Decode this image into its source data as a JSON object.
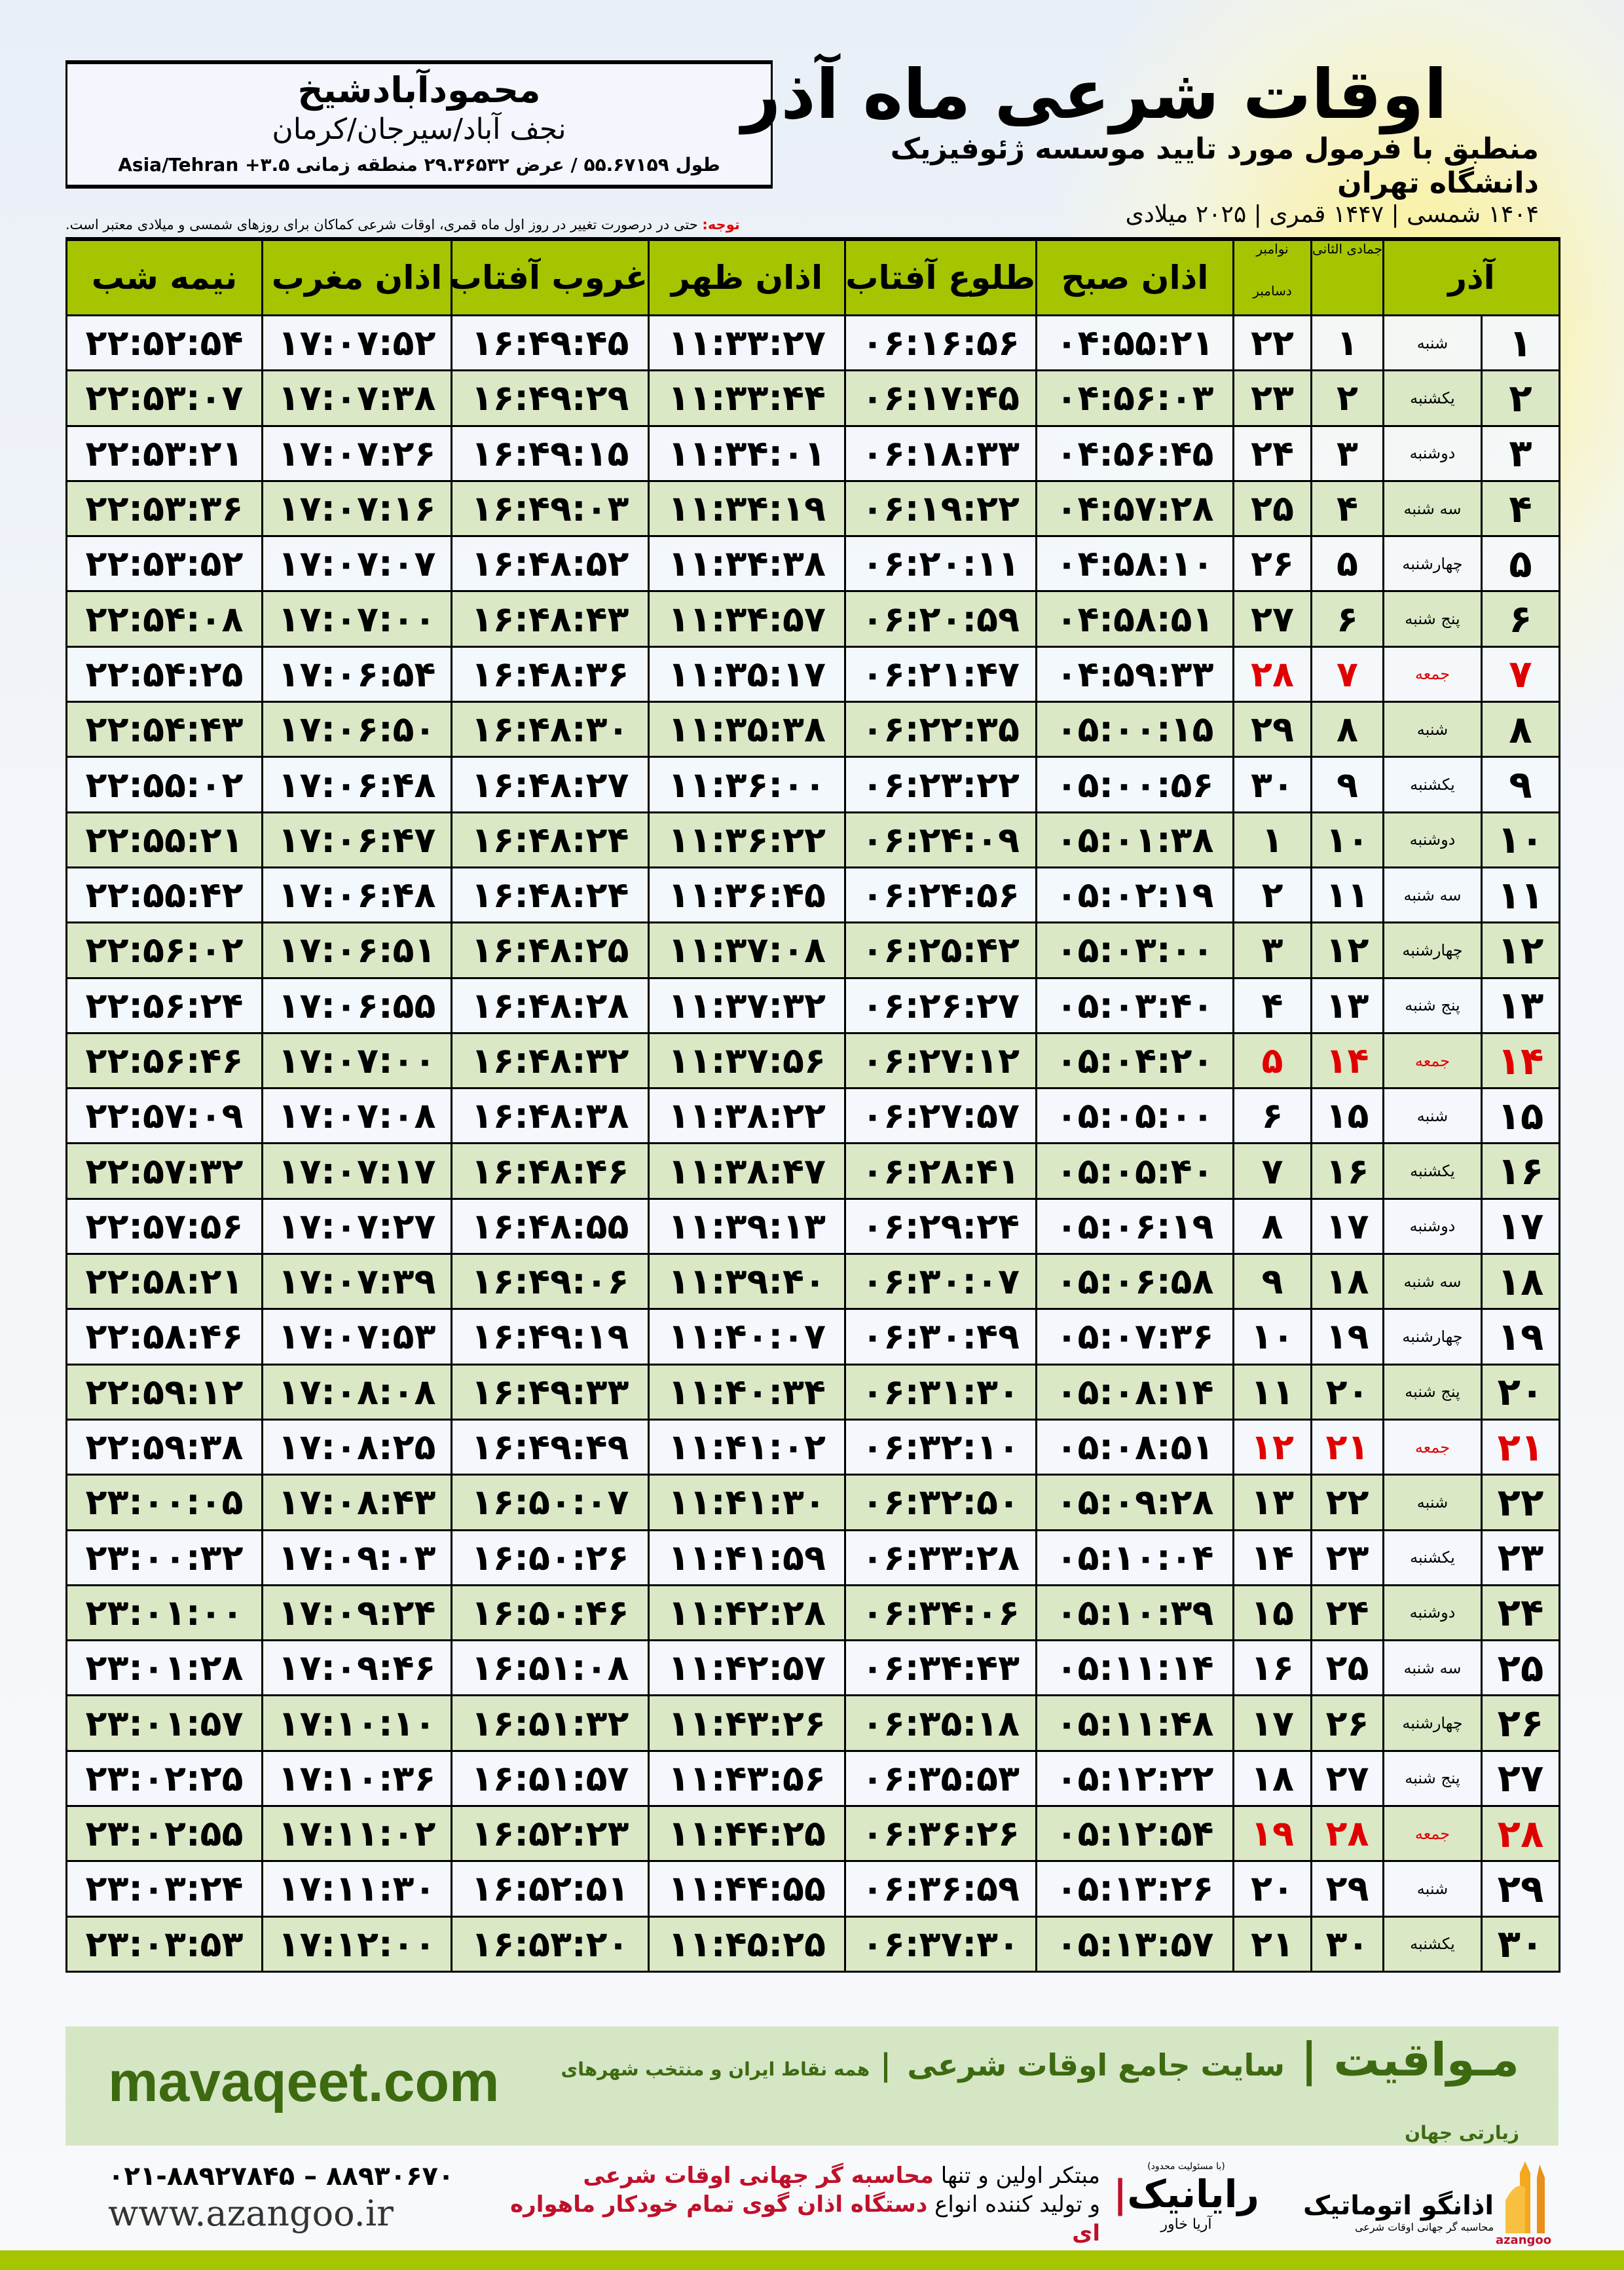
{
  "header": {
    "title": "اوقات شرعی ماه آذر",
    "subtitle": "منطبق با فرمول مورد تایید موسسه ژئوفیزیک دانشگاه تهران",
    "years": "۱۴۰۴ شمسی | ۱۴۴۷ قمری | ۲۰۲۵ میلادی"
  },
  "location": {
    "name": "محمودآبادشیخ",
    "region": "نجف آباد/سیرجان/کرمان",
    "coords": "طول ۵۵.۶۷۱۵۹ / عرض ۲۹.۳۶۵۳۲ منطقه زمانی ۳.۵+ Asia/Tehran"
  },
  "note": {
    "label": "توجه:",
    "text": " حتی در درصورت تغییر در روز اول ماه قمری، اوقات شرعی کماکان برای روزهای شمسی و میلادی معتبر است."
  },
  "table": {
    "headers": {
      "azar": "آذر",
      "jumada": "جمادی الثانی",
      "november": "نوامبر",
      "december": "دسامبر",
      "fajr": "اذان صبح",
      "sunrise": "طلوع آفتاب",
      "dhuhr": "اذان ظهر",
      "sunset": "غروب آفتاب",
      "maghrib": "اذان مغرب",
      "midnight": "نیمه شب"
    },
    "friday_color": "#e00000",
    "header_color": "#a6c500",
    "rows": [
      [
        "۱",
        "شنبه",
        "۱",
        "۲۲",
        "۰۴:۵۵:۲۱",
        "۰۶:۱۶:۵۶",
        "۱۱:۳۳:۲۷",
        "۱۶:۴۹:۴۵",
        "۱۷:۰۷:۵۲",
        "۲۲:۵۲:۵۴"
      ],
      [
        "۲",
        "یکشنبه",
        "۲",
        "۲۳",
        "۰۴:۵۶:۰۳",
        "۰۶:۱۷:۴۵",
        "۱۱:۳۳:۴۴",
        "۱۶:۴۹:۲۹",
        "۱۷:۰۷:۳۸",
        "۲۲:۵۳:۰۷"
      ],
      [
        "۳",
        "دوشنبه",
        "۳",
        "۲۴",
        "۰۴:۵۶:۴۵",
        "۰۶:۱۸:۳۳",
        "۱۱:۳۴:۰۱",
        "۱۶:۴۹:۱۵",
        "۱۷:۰۷:۲۶",
        "۲۲:۵۳:۲۱"
      ],
      [
        "۴",
        "سه شنبه",
        "۴",
        "۲۵",
        "۰۴:۵۷:۲۸",
        "۰۶:۱۹:۲۲",
        "۱۱:۳۴:۱۹",
        "۱۶:۴۹:۰۳",
        "۱۷:۰۷:۱۶",
        "۲۲:۵۳:۳۶"
      ],
      [
        "۵",
        "چهارشنبه",
        "۵",
        "۲۶",
        "۰۴:۵۸:۱۰",
        "۰۶:۲۰:۱۱",
        "۱۱:۳۴:۳۸",
        "۱۶:۴۸:۵۲",
        "۱۷:۰۷:۰۷",
        "۲۲:۵۳:۵۲"
      ],
      [
        "۶",
        "پنج شنبه",
        "۶",
        "۲۷",
        "۰۴:۵۸:۵۱",
        "۰۶:۲۰:۵۹",
        "۱۱:۳۴:۵۷",
        "۱۶:۴۸:۴۳",
        "۱۷:۰۷:۰۰",
        "۲۲:۵۴:۰۸"
      ],
      [
        "۷",
        "جمعه",
        "۷",
        "۲۸",
        "۰۴:۵۹:۳۳",
        "۰۶:۲۱:۴۷",
        "۱۱:۳۵:۱۷",
        "۱۶:۴۸:۳۶",
        "۱۷:۰۶:۵۴",
        "۲۲:۵۴:۲۵"
      ],
      [
        "۸",
        "شنبه",
        "۸",
        "۲۹",
        "۰۵:۰۰:۱۵",
        "۰۶:۲۲:۳۵",
        "۱۱:۳۵:۳۸",
        "۱۶:۴۸:۳۰",
        "۱۷:۰۶:۵۰",
        "۲۲:۵۴:۴۳"
      ],
      [
        "۹",
        "یکشنبه",
        "۹",
        "۳۰",
        "۰۵:۰۰:۵۶",
        "۰۶:۲۳:۲۲",
        "۱۱:۳۶:۰۰",
        "۱۶:۴۸:۲۷",
        "۱۷:۰۶:۴۸",
        "۲۲:۵۵:۰۲"
      ],
      [
        "۱۰",
        "دوشنبه",
        "۱۰",
        "۱",
        "۰۵:۰۱:۳۸",
        "۰۶:۲۴:۰۹",
        "۱۱:۳۶:۲۲",
        "۱۶:۴۸:۲۴",
        "۱۷:۰۶:۴۷",
        "۲۲:۵۵:۲۱"
      ],
      [
        "۱۱",
        "سه شنبه",
        "۱۱",
        "۲",
        "۰۵:۰۲:۱۹",
        "۰۶:۲۴:۵۶",
        "۱۱:۳۶:۴۵",
        "۱۶:۴۸:۲۴",
        "۱۷:۰۶:۴۸",
        "۲۲:۵۵:۴۲"
      ],
      [
        "۱۲",
        "چهارشنبه",
        "۱۲",
        "۳",
        "۰۵:۰۳:۰۰",
        "۰۶:۲۵:۴۲",
        "۱۱:۳۷:۰۸",
        "۱۶:۴۸:۲۵",
        "۱۷:۰۶:۵۱",
        "۲۲:۵۶:۰۲"
      ],
      [
        "۱۳",
        "پنج شنبه",
        "۱۳",
        "۴",
        "۰۵:۰۳:۴۰",
        "۰۶:۲۶:۲۷",
        "۱۱:۳۷:۳۲",
        "۱۶:۴۸:۲۸",
        "۱۷:۰۶:۵۵",
        "۲۲:۵۶:۲۴"
      ],
      [
        "۱۴",
        "جمعه",
        "۱۴",
        "۵",
        "۰۵:۰۴:۲۰",
        "۰۶:۲۷:۱۲",
        "۱۱:۳۷:۵۶",
        "۱۶:۴۸:۳۲",
        "۱۷:۰۷:۰۰",
        "۲۲:۵۶:۴۶"
      ],
      [
        "۱۵",
        "شنبه",
        "۱۵",
        "۶",
        "۰۵:۰۵:۰۰",
        "۰۶:۲۷:۵۷",
        "۱۱:۳۸:۲۲",
        "۱۶:۴۸:۳۸",
        "۱۷:۰۷:۰۸",
        "۲۲:۵۷:۰۹"
      ],
      [
        "۱۶",
        "یکشنبه",
        "۱۶",
        "۷",
        "۰۵:۰۵:۴۰",
        "۰۶:۲۸:۴۱",
        "۱۱:۳۸:۴۷",
        "۱۶:۴۸:۴۶",
        "۱۷:۰۷:۱۷",
        "۲۲:۵۷:۳۲"
      ],
      [
        "۱۷",
        "دوشنبه",
        "۱۷",
        "۸",
        "۰۵:۰۶:۱۹",
        "۰۶:۲۹:۲۴",
        "۱۱:۳۹:۱۳",
        "۱۶:۴۸:۵۵",
        "۱۷:۰۷:۲۷",
        "۲۲:۵۷:۵۶"
      ],
      [
        "۱۸",
        "سه شنبه",
        "۱۸",
        "۹",
        "۰۵:۰۶:۵۸",
        "۰۶:۳۰:۰۷",
        "۱۱:۳۹:۴۰",
        "۱۶:۴۹:۰۶",
        "۱۷:۰۷:۳۹",
        "۲۲:۵۸:۲۱"
      ],
      [
        "۱۹",
        "چهارشنبه",
        "۱۹",
        "۱۰",
        "۰۵:۰۷:۳۶",
        "۰۶:۳۰:۴۹",
        "۱۱:۴۰:۰۷",
        "۱۶:۴۹:۱۹",
        "۱۷:۰۷:۵۳",
        "۲۲:۵۸:۴۶"
      ],
      [
        "۲۰",
        "پنج شنبه",
        "۲۰",
        "۱۱",
        "۰۵:۰۸:۱۴",
        "۰۶:۳۱:۳۰",
        "۱۱:۴۰:۳۴",
        "۱۶:۴۹:۳۳",
        "۱۷:۰۸:۰۸",
        "۲۲:۵۹:۱۲"
      ],
      [
        "۲۱",
        "جمعه",
        "۲۱",
        "۱۲",
        "۰۵:۰۸:۵۱",
        "۰۶:۳۲:۱۰",
        "۱۱:۴۱:۰۲",
        "۱۶:۴۹:۴۹",
        "۱۷:۰۸:۲۵",
        "۲۲:۵۹:۳۸"
      ],
      [
        "۲۲",
        "شنبه",
        "۲۲",
        "۱۳",
        "۰۵:۰۹:۲۸",
        "۰۶:۳۲:۵۰",
        "۱۱:۴۱:۳۰",
        "۱۶:۵۰:۰۷",
        "۱۷:۰۸:۴۳",
        "۲۳:۰۰:۰۵"
      ],
      [
        "۲۳",
        "یکشنبه",
        "۲۳",
        "۱۴",
        "۰۵:۱۰:۰۴",
        "۰۶:۳۳:۲۸",
        "۱۱:۴۱:۵۹",
        "۱۶:۵۰:۲۶",
        "۱۷:۰۹:۰۳",
        "۲۳:۰۰:۳۲"
      ],
      [
        "۲۴",
        "دوشنبه",
        "۲۴",
        "۱۵",
        "۰۵:۱۰:۳۹",
        "۰۶:۳۴:۰۶",
        "۱۱:۴۲:۲۸",
        "۱۶:۵۰:۴۶",
        "۱۷:۰۹:۲۴",
        "۲۳:۰۱:۰۰"
      ],
      [
        "۲۵",
        "سه شنبه",
        "۲۵",
        "۱۶",
        "۰۵:۱۱:۱۴",
        "۰۶:۳۴:۴۳",
        "۱۱:۴۲:۵۷",
        "۱۶:۵۱:۰۸",
        "۱۷:۰۹:۴۶",
        "۲۳:۰۱:۲۸"
      ],
      [
        "۲۶",
        "چهارشنبه",
        "۲۶",
        "۱۷",
        "۰۵:۱۱:۴۸",
        "۰۶:۳۵:۱۸",
        "۱۱:۴۳:۲۶",
        "۱۶:۵۱:۳۲",
        "۱۷:۱۰:۱۰",
        "۲۳:۰۱:۵۷"
      ],
      [
        "۲۷",
        "پنج شنبه",
        "۲۷",
        "۱۸",
        "۰۵:۱۲:۲۲",
        "۰۶:۳۵:۵۳",
        "۱۱:۴۳:۵۶",
        "۱۶:۵۱:۵۷",
        "۱۷:۱۰:۳۶",
        "۲۳:۰۲:۲۵"
      ],
      [
        "۲۸",
        "جمعه",
        "۲۸",
        "۱۹",
        "۰۵:۱۲:۵۴",
        "۰۶:۳۶:۲۶",
        "۱۱:۴۴:۲۵",
        "۱۶:۵۲:۲۳",
        "۱۷:۱۱:۰۲",
        "۲۳:۰۲:۵۵"
      ],
      [
        "۲۹",
        "شنبه",
        "۲۹",
        "۲۰",
        "۰۵:۱۳:۲۶",
        "۰۶:۳۶:۵۹",
        "۱۱:۴۴:۵۵",
        "۱۶:۵۲:۵۱",
        "۱۷:۱۱:۳۰",
        "۲۳:۰۳:۲۴"
      ],
      [
        "۳۰",
        "یکشنبه",
        "۳۰",
        "۲۱",
        "۰۵:۱۳:۵۷",
        "۰۶:۳۷:۳۰",
        "۱۱:۴۵:۲۵",
        "۱۶:۵۳:۲۰",
        "۱۷:۱۲:۰۰",
        "۲۳:۰۳:۵۳"
      ]
    ]
  },
  "footer": {
    "site": "mavaqeet.com",
    "brand": "مـواقیت",
    "slogan": "سایت جامع اوقات شرعی",
    "coverage": "همه نقاط ایران و منتخب شهرهای زیارتی جهان",
    "phone": "۰۲۱-۸۸۹۲۷۸۴۵ – ۸۸۹۳۰۶۷۰",
    "www": "www.azangoo.ir",
    "promo1_a": "مبتکر اولین و تنها ",
    "promo1_b": "محاسبه گر جهانی اوقات شرعی",
    "promo2_a": "و تولید کننده انواع ",
    "promo2_b": "دستگاه اذان گوی تمام خودکار ماهواره ای",
    "rayanik_note": "(با مسئولیت محدود)",
    "rayanik": "رایانیک",
    "rayanik_sub": "آریا خاور",
    "azangoo_name": "اذانگو اتوماتیک",
    "azangoo_sub": "محاسبه گر جهانی اوقات شرعی",
    "azangoo_latin": "azangoo"
  }
}
